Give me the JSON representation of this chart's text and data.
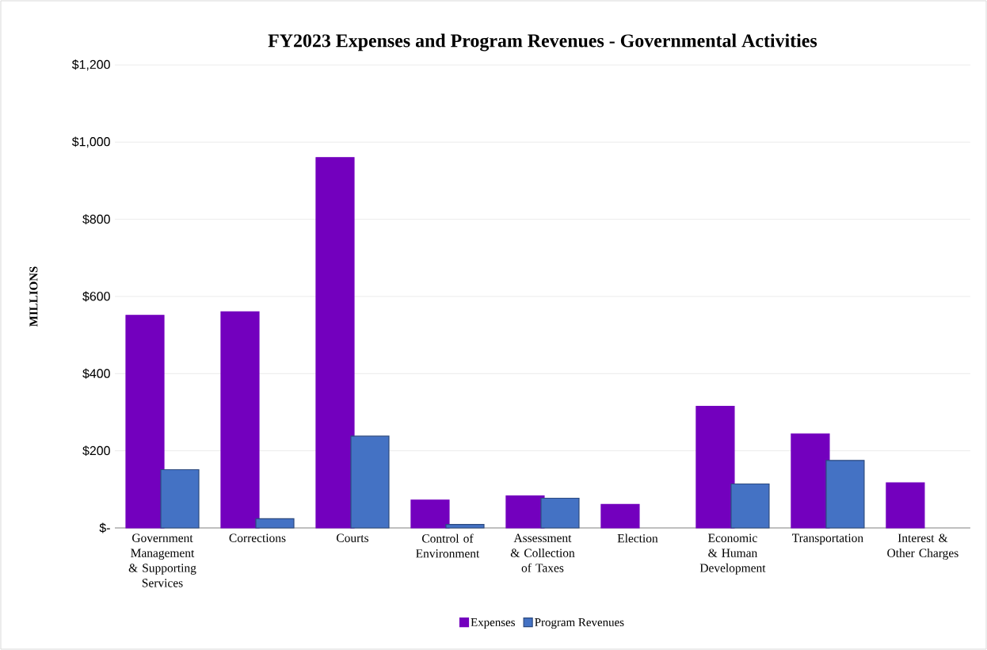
{
  "chart_data": {
    "type": "bar",
    "title": "FY2023 Expenses and Program Revenues - Governmental Activities",
    "ylabel": "MILLIONS",
    "categories": [
      "Government Management & Supporting Services",
      "Corrections",
      "Courts",
      "Control of Environment",
      "Assessment & Collection of Taxes",
      "Election",
      "Economic & Human Development",
      "Transportation",
      "Interest & Other Charges"
    ],
    "series": [
      {
        "name": "Expenses",
        "color": "#7300be",
        "values": [
          551,
          560,
          960,
          72,
          83,
          61,
          315,
          244,
          117
        ]
      },
      {
        "name": "Program Revenues",
        "color": "#4472c4",
        "values": [
          151,
          24,
          238,
          9,
          77,
          null,
          114,
          175,
          null
        ]
      }
    ],
    "ylim": [
      0,
      1200
    ],
    "yticks": [
      {
        "value": 0,
        "label": "$-"
      },
      {
        "value": 200,
        "label": "$200"
      },
      {
        "value": 400,
        "label": "$400"
      },
      {
        "value": 600,
        "label": "$600"
      },
      {
        "value": 800,
        "label": "$800"
      },
      {
        "value": 1000,
        "label": "$1,000"
      },
      {
        "value": 1200,
        "label": "$1,200"
      }
    ],
    "grid": "y",
    "legend": "bottom"
  }
}
